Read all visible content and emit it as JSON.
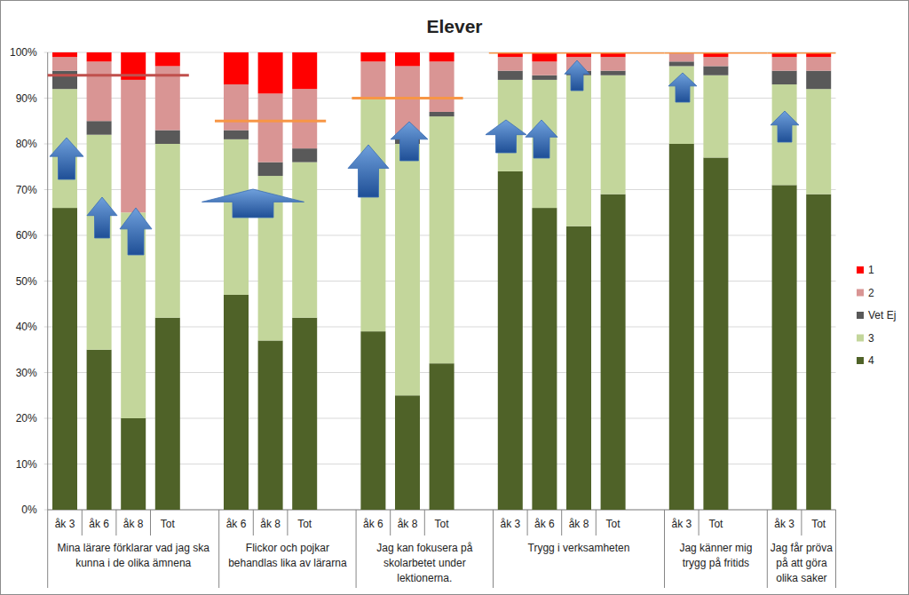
{
  "chart_data": {
    "type": "bar",
    "title": "Elever",
    "stacked": true,
    "grid": true,
    "legend": "right",
    "ylim": [
      0,
      100
    ],
    "yticks": [
      {
        "value": 0,
        "label": "0%"
      },
      {
        "value": 10,
        "label": "10%"
      },
      {
        "value": 20,
        "label": "20%"
      },
      {
        "value": 30,
        "label": "30%"
      },
      {
        "value": 40,
        "label": "40%"
      },
      {
        "value": 50,
        "label": "50%"
      },
      {
        "value": 60,
        "label": "60%"
      },
      {
        "value": 70,
        "label": "70%"
      },
      {
        "value": 80,
        "label": "80%"
      },
      {
        "value": 90,
        "label": "90%"
      },
      {
        "value": 100,
        "label": "100%"
      }
    ],
    "groups": [
      {
        "label": "Mina lärare förklarar vad jag ska kunna i de olika ämnena",
        "categories": [
          "åk 3",
          "åk 6",
          "åk 8",
          "Tot"
        ],
        "target": 95
      },
      {
        "label": "Flickor och pojkar behandlas lika av lärarna",
        "categories": [
          "åk 6",
          "åk 8",
          "Tot"
        ],
        "target": 85
      },
      {
        "label": "Jag kan fokusera på skolarbetet under lektionerna.",
        "categories": [
          "åk 6",
          "åk 8",
          "Tot"
        ],
        "target": 90
      },
      {
        "label": "Trygg i verksamheten",
        "categories": [
          "åk 3",
          "åk 6",
          "åk 8",
          "Tot"
        ],
        "target": 100
      },
      {
        "label": "Jag känner mig trygg på fritids",
        "categories": [
          "åk 3",
          "Tot"
        ],
        "target": 100
      },
      {
        "label": "Jag får pröva på att göra olika saker",
        "categories": [
          "åk 3",
          "Tot"
        ],
        "target": 100
      }
    ],
    "series": [
      {
        "name": "4",
        "color": "#4f6228",
        "values": [
          66,
          35,
          20,
          42,
          47,
          37,
          42,
          39,
          25,
          32,
          74,
          66,
          62,
          69,
          80,
          77,
          71,
          69
        ]
      },
      {
        "name": "3",
        "color": "#c3d69b",
        "values": [
          26,
          47,
          45,
          38,
          34,
          36,
          34,
          51,
          55,
          54,
          20,
          28,
          33,
          26,
          17,
          18,
          22,
          23
        ]
      },
      {
        "name": "Vet Ej",
        "color": "#595959",
        "values": [
          4,
          3,
          0,
          3,
          2,
          3,
          3,
          0,
          1,
          1,
          2,
          1,
          1,
          1,
          1,
          2,
          3,
          4
        ]
      },
      {
        "name": "2",
        "color": "#d99594",
        "values": [
          3,
          13,
          29,
          14,
          10,
          15,
          13,
          8,
          16,
          11,
          3,
          3,
          3,
          3,
          2,
          2,
          3,
          3
        ]
      },
      {
        "name": "1",
        "color": "#ff0000",
        "values": [
          1,
          2,
          6,
          3,
          7,
          9,
          8,
          2,
          3,
          2,
          1,
          2,
          1,
          1,
          0,
          1,
          1,
          1
        ]
      }
    ]
  }
}
